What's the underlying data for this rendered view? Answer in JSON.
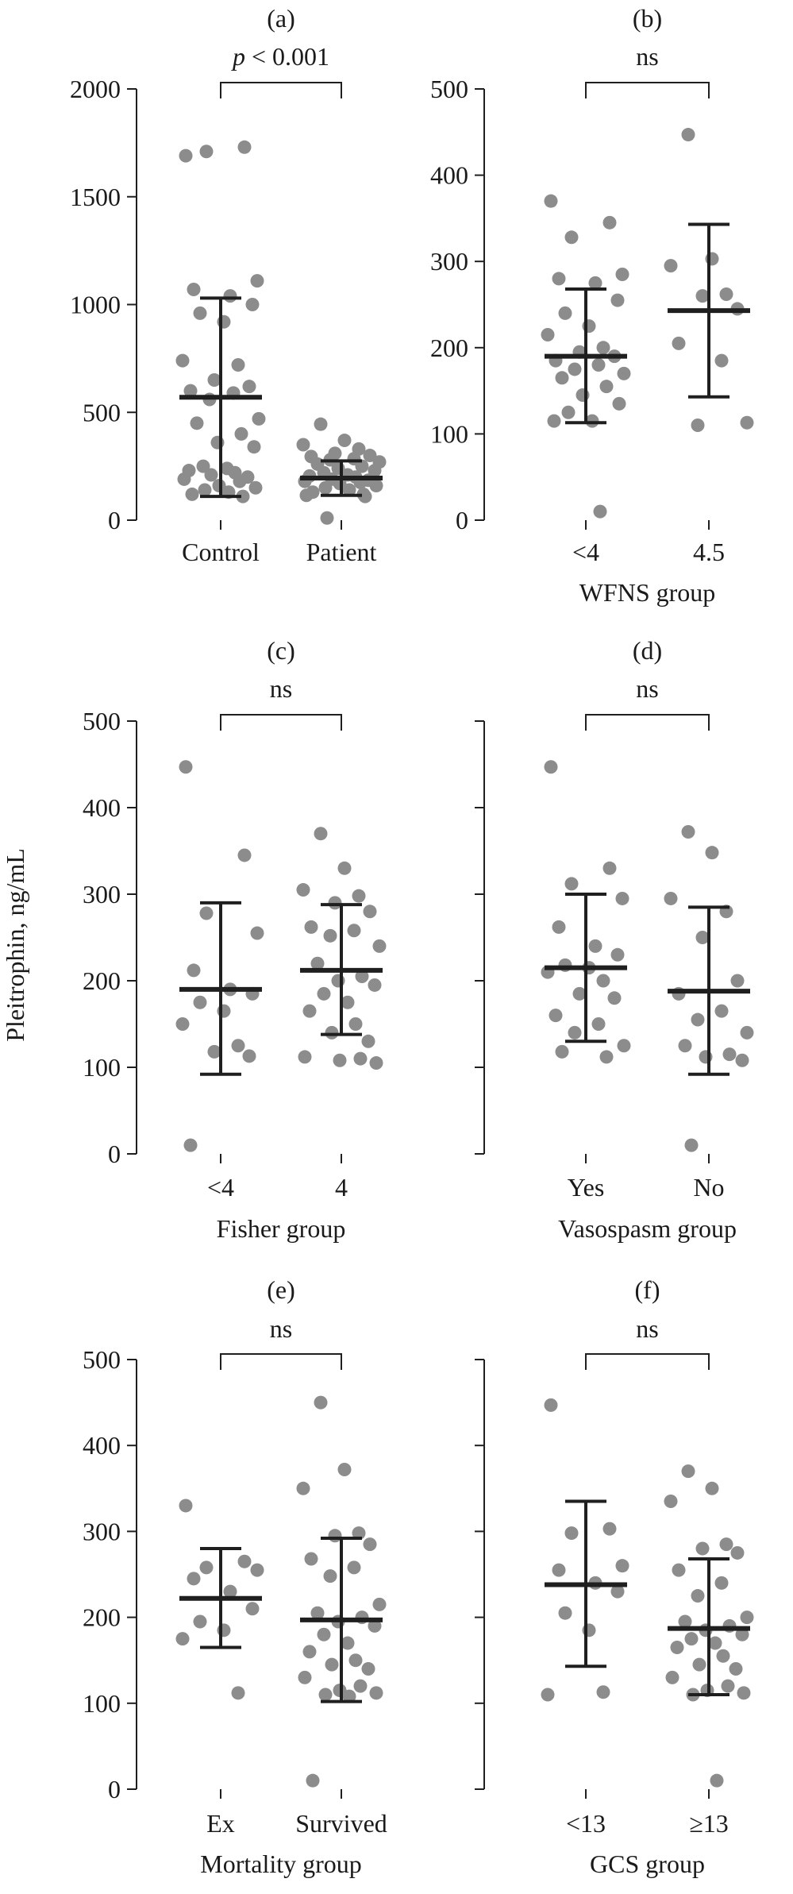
{
  "figure": {
    "ylabel": "Pleitrophin, ng/mL"
  },
  "chart_data": [
    {
      "type": "scatter",
      "panel": "(a)",
      "categories": [
        "Control",
        "Patient"
      ],
      "xlabel": "",
      "ylim": [
        0,
        2000
      ],
      "yticks": [
        0,
        500,
        1000,
        1500,
        2000
      ],
      "show_tick_labels": true,
      "significance": {
        "prefix": "p",
        "suffix": " < 0.001"
      },
      "groups": [
        {
          "name": "Control",
          "mean": 570,
          "upper": 1030,
          "lower": 110,
          "points": [
            1690,
            1730,
            1710,
            1110,
            1070,
            1040,
            1000,
            960,
            920,
            740,
            720,
            650,
            620,
            600,
            590,
            560,
            470,
            450,
            400,
            360,
            340,
            250,
            240,
            230,
            220,
            210,
            200,
            190,
            180,
            160,
            150,
            140,
            130,
            120,
            110
          ]
        },
        {
          "name": "Patient",
          "mean": 195,
          "upper": 275,
          "lower": 115,
          "points": [
            445,
            370,
            350,
            330,
            310,
            300,
            295,
            285,
            280,
            270,
            260,
            250,
            240,
            230,
            220,
            210,
            205,
            200,
            190,
            185,
            180,
            175,
            170,
            160,
            150,
            140,
            130,
            120,
            115,
            110,
            10
          ]
        }
      ]
    },
    {
      "type": "scatter",
      "panel": "(b)",
      "categories": [
        "<4",
        "4.5"
      ],
      "xlabel": "WFNS group",
      "ylim": [
        0,
        500
      ],
      "yticks": [
        0,
        100,
        200,
        300,
        400,
        500
      ],
      "show_tick_labels": true,
      "significance": {
        "prefix": "",
        "suffix": "ns"
      },
      "groups": [
        {
          "name": "<4",
          "mean": 190,
          "upper": 268,
          "lower": 113,
          "points": [
            370,
            345,
            328,
            285,
            280,
            275,
            255,
            240,
            225,
            215,
            200,
            195,
            190,
            185,
            180,
            175,
            170,
            165,
            155,
            145,
            135,
            125,
            115,
            115,
            10
          ]
        },
        {
          "name": "4.5",
          "mean": 243,
          "upper": 343,
          "lower": 143,
          "points": [
            447,
            303,
            295,
            262,
            260,
            245,
            205,
            185,
            110,
            113
          ]
        }
      ]
    },
    {
      "type": "scatter",
      "panel": "(c)",
      "categories": [
        "<4",
        "4"
      ],
      "xlabel": "Fisher group",
      "ylim": [
        0,
        500
      ],
      "yticks": [
        0,
        100,
        200,
        300,
        400,
        500
      ],
      "show_tick_labels": true,
      "significance": {
        "prefix": "",
        "suffix": "ns"
      },
      "groups": [
        {
          "name": "<4",
          "mean": 190,
          "upper": 290,
          "lower": 92,
          "points": [
            447,
            345,
            278,
            255,
            212,
            190,
            185,
            175,
            165,
            150,
            125,
            118,
            113,
            10
          ]
        },
        {
          "name": "4",
          "mean": 212,
          "upper": 288,
          "lower": 138,
          "points": [
            370,
            330,
            305,
            298,
            290,
            280,
            262,
            258,
            252,
            240,
            220,
            205,
            200,
            195,
            185,
            175,
            165,
            150,
            140,
            130,
            112,
            110,
            108,
            105
          ]
        }
      ]
    },
    {
      "type": "scatter",
      "panel": "(d)",
      "categories": [
        "Yes",
        "No"
      ],
      "xlabel": "Vasospasm group",
      "ylim": [
        0,
        500
      ],
      "yticks": [
        0,
        100,
        200,
        300,
        400,
        500
      ],
      "show_tick_labels": false,
      "significance": {
        "prefix": "",
        "suffix": "ns"
      },
      "groups": [
        {
          "name": "Yes",
          "mean": 215,
          "upper": 300,
          "lower": 130,
          "points": [
            447,
            330,
            312,
            295,
            262,
            240,
            230,
            218,
            215,
            210,
            200,
            185,
            180,
            160,
            150,
            140,
            125,
            118,
            112
          ]
        },
        {
          "name": "No",
          "mean": 188,
          "upper": 285,
          "lower": 92,
          "points": [
            372,
            348,
            295,
            280,
            250,
            200,
            185,
            165,
            155,
            140,
            125,
            115,
            112,
            108,
            10
          ]
        }
      ]
    },
    {
      "type": "scatter",
      "panel": "(e)",
      "categories": [
        "Ex",
        "Survived"
      ],
      "xlabel": "Mortality group",
      "ylim": [
        0,
        500
      ],
      "yticks": [
        0,
        100,
        200,
        300,
        400,
        500
      ],
      "show_tick_labels": true,
      "significance": {
        "prefix": "",
        "suffix": "ns"
      },
      "groups": [
        {
          "name": "Ex",
          "mean": 222,
          "upper": 280,
          "lower": 165,
          "points": [
            330,
            265,
            258,
            255,
            245,
            230,
            210,
            195,
            185,
            175,
            112
          ]
        },
        {
          "name": "Survived",
          "mean": 197,
          "upper": 292,
          "lower": 102,
          "points": [
            450,
            372,
            350,
            298,
            295,
            285,
            268,
            258,
            248,
            215,
            205,
            200,
            195,
            190,
            180,
            170,
            160,
            150,
            145,
            140,
            130,
            120,
            115,
            112,
            110,
            108,
            10
          ]
        }
      ]
    },
    {
      "type": "scatter",
      "panel": "(f)",
      "categories": [
        "<13",
        "≥13"
      ],
      "xlabel": "GCS group",
      "ylim": [
        0,
        500
      ],
      "yticks": [
        0,
        100,
        200,
        300,
        400,
        500
      ],
      "show_tick_labels": false,
      "significance": {
        "prefix": "",
        "suffix": "ns"
      },
      "groups": [
        {
          "name": "<13",
          "mean": 238,
          "upper": 335,
          "lower": 143,
          "points": [
            447,
            303,
            298,
            260,
            255,
            240,
            230,
            205,
            185,
            110,
            113
          ]
        },
        {
          "name": "≥13",
          "mean": 187,
          "upper": 268,
          "lower": 110,
          "points": [
            370,
            350,
            335,
            285,
            280,
            275,
            255,
            240,
            225,
            200,
            195,
            190,
            185,
            180,
            175,
            170,
            165,
            155,
            145,
            140,
            130,
            120,
            115,
            112,
            110,
            10
          ]
        }
      ]
    }
  ]
}
